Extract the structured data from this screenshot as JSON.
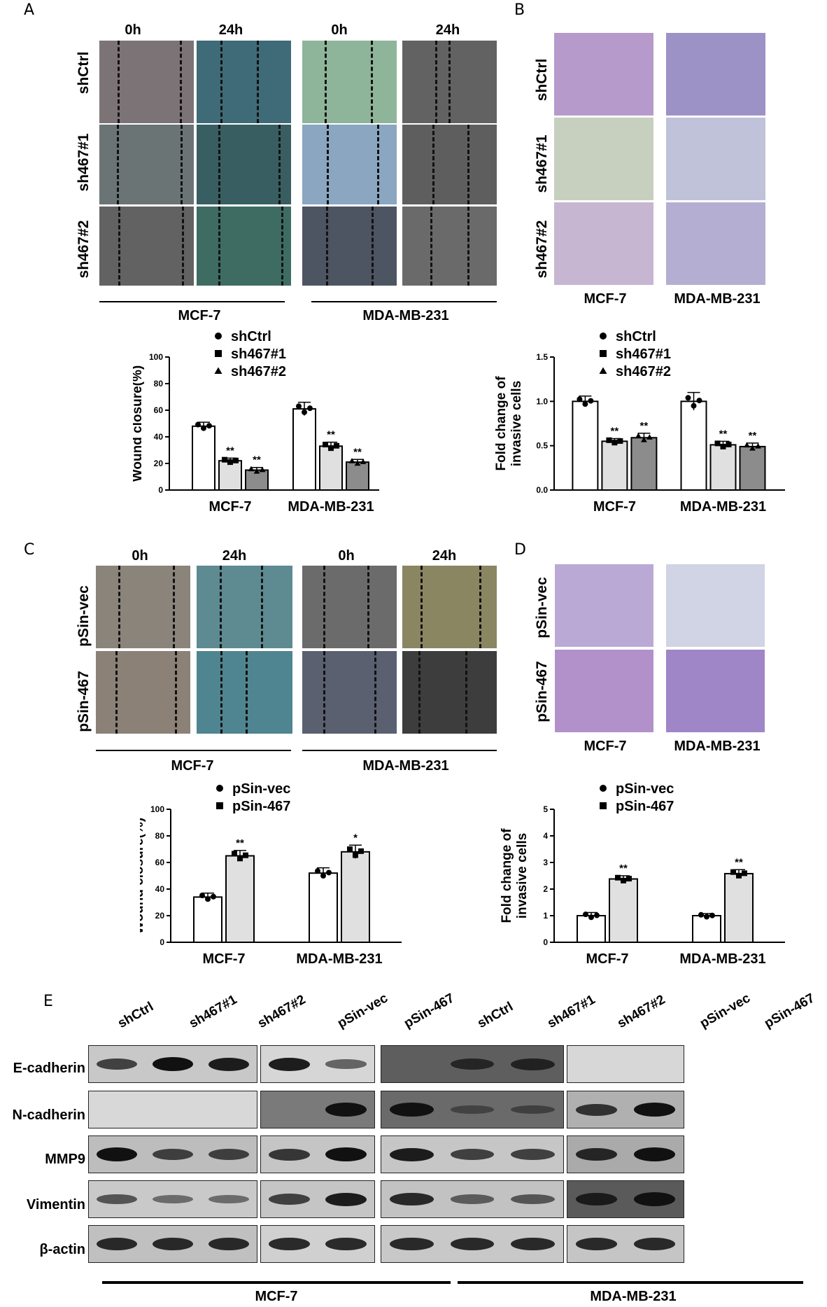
{
  "panels": {
    "A": "A",
    "B": "B",
    "C": "C",
    "D": "D",
    "E": "E"
  },
  "panelA": {
    "timepoints": [
      "0h",
      "24h",
      "0h",
      "24h"
    ],
    "rows": [
      "shCtrl",
      "sh467#1",
      "sh467#2"
    ],
    "cell_lines": [
      "MCF-7",
      "MDA-MB-231"
    ]
  },
  "panelB": {
    "rows": [
      "shCtrl",
      "sh467#1",
      "sh467#2"
    ],
    "cell_lines": [
      "MCF-7",
      "MDA-MB-231"
    ]
  },
  "panelC": {
    "timepoints": [
      "0h",
      "24h",
      "0h",
      "24h"
    ],
    "rows": [
      "pSin-vec",
      "pSin-467"
    ],
    "cell_lines": [
      "MCF-7",
      "MDA-MB-231"
    ]
  },
  "panelD": {
    "rows": [
      "pSin-vec",
      "pSin-467"
    ],
    "cell_lines": [
      "MCF-7",
      "MDA-MB-231"
    ]
  },
  "chart_data": [
    {
      "id": "chartA",
      "type": "bar",
      "ylabel": "Wound closure(%)",
      "ylim": [
        0,
        100
      ],
      "yticks": [
        "0",
        "20",
        "40",
        "60",
        "80",
        "100"
      ],
      "categories": [
        "MCF-7",
        "MDA-MB-231"
      ],
      "series": [
        {
          "name": "shCtrl",
          "marker": "circle",
          "fill": "#ffffff",
          "values": [
            48,
            61
          ],
          "errors": [
            3,
            5
          ],
          "sig": [
            "",
            ""
          ]
        },
        {
          "name": "sh467#1",
          "marker": "square",
          "fill": "#e0e0e0",
          "values": [
            22,
            33
          ],
          "errors": [
            2,
            3
          ],
          "sig": [
            "**",
            "**"
          ]
        },
        {
          "name": "sh467#2",
          "marker": "triangle",
          "fill": "#8c8c8c",
          "values": [
            15,
            21
          ],
          "errors": [
            2,
            2
          ],
          "sig": [
            "**",
            "**"
          ]
        }
      ]
    },
    {
      "id": "chartB",
      "type": "bar",
      "ylabel": "Fold change of invasive cells",
      "ylabel_lines": [
        "Fold change of",
        "invasive cells"
      ],
      "ylim": [
        0,
        1.5
      ],
      "yticks": [
        "0.0",
        "0.5",
        "1.0",
        "1.5"
      ],
      "categories": [
        "MCF-7",
        "MDA-MB-231"
      ],
      "series": [
        {
          "name": "shCtrl",
          "marker": "circle",
          "fill": "#ffffff",
          "values": [
            1.0,
            1.0
          ],
          "errors": [
            0.06,
            0.1
          ],
          "sig": [
            "",
            ""
          ]
        },
        {
          "name": "sh467#1",
          "marker": "square",
          "fill": "#e0e0e0",
          "values": [
            0.55,
            0.51
          ],
          "errors": [
            0.03,
            0.04
          ],
          "sig": [
            "**",
            "**"
          ]
        },
        {
          "name": "sh467#2",
          "marker": "triangle",
          "fill": "#8c8c8c",
          "values": [
            0.59,
            0.49
          ],
          "errors": [
            0.05,
            0.04
          ],
          "sig": [
            "**",
            "**"
          ]
        }
      ]
    },
    {
      "id": "chartC",
      "type": "bar",
      "ylabel": "Wound closure(%)",
      "ylim": [
        0,
        100
      ],
      "yticks": [
        "0",
        "20",
        "40",
        "60",
        "80",
        "100"
      ],
      "categories": [
        "MCF-7",
        "MDA-MB-231"
      ],
      "series": [
        {
          "name": "pSin-vec",
          "marker": "circle",
          "fill": "#ffffff",
          "values": [
            34,
            52
          ],
          "errors": [
            3,
            4
          ],
          "sig": [
            "",
            ""
          ]
        },
        {
          "name": "pSin-467",
          "marker": "square",
          "fill": "#e0e0e0",
          "values": [
            65,
            68
          ],
          "errors": [
            4,
            5
          ],
          "sig": [
            "**",
            "*"
          ]
        }
      ]
    },
    {
      "id": "chartD",
      "type": "bar",
      "ylabel": "Fold change of invasive cells",
      "ylabel_lines": [
        "Fold change of",
        "invasive cells"
      ],
      "ylim": [
        0,
        5
      ],
      "yticks": [
        "0",
        "1",
        "2",
        "3",
        "4",
        "5"
      ],
      "categories": [
        "MCF-7",
        "MDA-MB-231"
      ],
      "series": [
        {
          "name": "pSin-vec",
          "marker": "circle",
          "fill": "#ffffff",
          "values": [
            1.0,
            1.0
          ],
          "errors": [
            0.12,
            0.08
          ],
          "sig": [
            "",
            ""
          ]
        },
        {
          "name": "pSin-467",
          "marker": "square",
          "fill": "#e0e0e0",
          "values": [
            2.38,
            2.58
          ],
          "errors": [
            0.12,
            0.15
          ],
          "sig": [
            "**",
            "**"
          ]
        }
      ]
    }
  ],
  "panelE": {
    "lanes_left": [
      "shCtrl",
      "sh467#1",
      "sh467#2",
      "pSin-vec",
      "pSin-467"
    ],
    "lanes_right": [
      "shCtrl",
      "sh467#1",
      "sh467#2",
      "pSin-vec",
      "pSin-467"
    ],
    "proteins": [
      "E-cadherin",
      "N-cadherin",
      "MMP9",
      "Vimentin",
      "β-actin"
    ],
    "cell_lines": [
      "MCF-7",
      "MDA-MB-231"
    ]
  }
}
